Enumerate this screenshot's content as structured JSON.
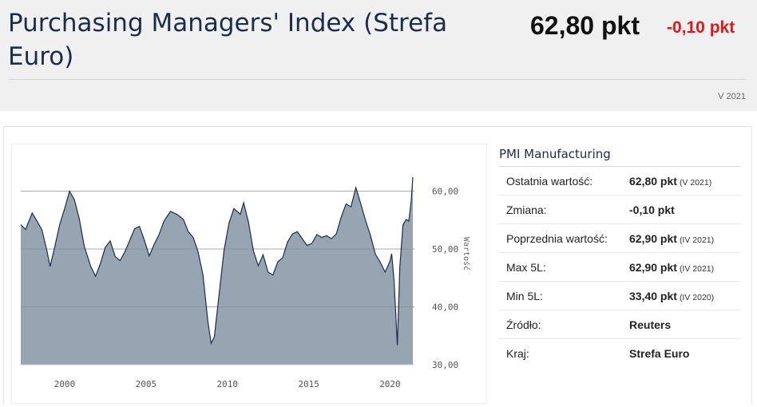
{
  "header": {
    "title": "Purchasing Managers' Index (Strefa Euro)",
    "price": "62,80 pkt",
    "change": "-0,10 pkt",
    "period": "V 2021"
  },
  "panel": {
    "title": "PMI Manufacturing",
    "rows": [
      {
        "label": "Ostatnia wartość:",
        "value": "62,80 pkt",
        "period": "(V 2021)"
      },
      {
        "label": "Zmiana:",
        "value": "-0,10 pkt",
        "period": ""
      },
      {
        "label": "Poprzednia wartość:",
        "value": "62,90 pkt",
        "period": "(IV 2021)"
      },
      {
        "label": "Max 5L:",
        "value": "62,90 pkt",
        "period": "(IV 2021)"
      },
      {
        "label": "Min 5L:",
        "value": "33,40 pkt",
        "period": "(IV 2020)"
      },
      {
        "label": "Źródło:",
        "value": "Reuters",
        "period": ""
      },
      {
        "label": "Kraj:",
        "value": "Strefa Euro",
        "period": ""
      }
    ]
  },
  "colors": {
    "fill": "#97a4b2",
    "line": "#1b2d4d",
    "change": "#e3161b",
    "grid": "#cfcfcf"
  },
  "chart_data": {
    "type": "area",
    "ylabel": "Wartość",
    "ylim": [
      30,
      62
    ],
    "yticks": [
      30,
      40,
      50,
      60
    ],
    "ytick_labels": [
      "30,00",
      "40,00",
      "50,00",
      "60,00"
    ],
    "xticks": [
      2000,
      2005,
      2010,
      2015,
      2020
    ],
    "xlim": [
      1997.3,
      2021.5
    ],
    "grid": true,
    "series": [
      {
        "x": [
          1997.3,
          1997.6,
          1998.0,
          1998.3,
          1998.6,
          1998.9,
          1999.1,
          1999.4,
          1999.7,
          2000.0,
          2000.3,
          2000.6,
          2000.9,
          2001.2,
          2001.6,
          2001.9,
          2002.2,
          2002.5,
          2002.8,
          2003.1,
          2003.4,
          2003.7,
          2004.0,
          2004.3,
          2004.6,
          2004.9,
          2005.2,
          2005.5,
          2005.8,
          2006.1,
          2006.5,
          2006.9,
          2007.3,
          2007.6,
          2007.9,
          2008.2,
          2008.5,
          2008.8,
          2009.0,
          2009.2,
          2009.5,
          2009.8,
          2010.1,
          2010.4,
          2010.8,
          2011.0,
          2011.3,
          2011.6,
          2011.9,
          2012.2,
          2012.5,
          2012.8,
          2013.1,
          2013.4,
          2013.7,
          2014.0,
          2014.3,
          2014.6,
          2014.9,
          2015.2,
          2015.5,
          2015.8,
          2016.1,
          2016.4,
          2016.7,
          2017.0,
          2017.3,
          2017.6,
          2017.9,
          2018.2,
          2018.5,
          2018.8,
          2019.1,
          2019.4,
          2019.7,
          2020.0,
          2020.1,
          2020.25,
          2020.45,
          2020.6,
          2020.8,
          2021.0,
          2021.15,
          2021.3,
          2021.4
        ],
        "y": [
          54.2,
          53.4,
          56.2,
          54.8,
          53.3,
          49.8,
          47.0,
          50.5,
          54.3,
          57.0,
          60.0,
          58.5,
          55.2,
          50.5,
          47.0,
          45.3,
          47.5,
          50.3,
          51.4,
          48.7,
          48.0,
          49.5,
          51.5,
          53.5,
          53.9,
          51.5,
          48.8,
          50.8,
          52.5,
          54.8,
          56.5,
          56.0,
          55.1,
          53.0,
          52.0,
          49.5,
          45.5,
          37.5,
          33.7,
          34.8,
          42.3,
          49.8,
          54.5,
          57.0,
          56.0,
          58.0,
          54.6,
          49.7,
          47.1,
          49.0,
          46.0,
          45.5,
          47.8,
          48.5,
          51.2,
          52.6,
          53.0,
          51.8,
          50.6,
          51.0,
          52.5,
          52.0,
          52.3,
          51.8,
          52.6,
          55.5,
          57.8,
          57.3,
          60.6,
          57.8,
          54.9,
          52.3,
          49.1,
          47.7,
          46.0,
          47.9,
          49.2,
          44.5,
          33.4,
          46.9,
          54.2,
          55.1,
          54.8,
          58.2,
          62.4
        ]
      }
    ]
  }
}
